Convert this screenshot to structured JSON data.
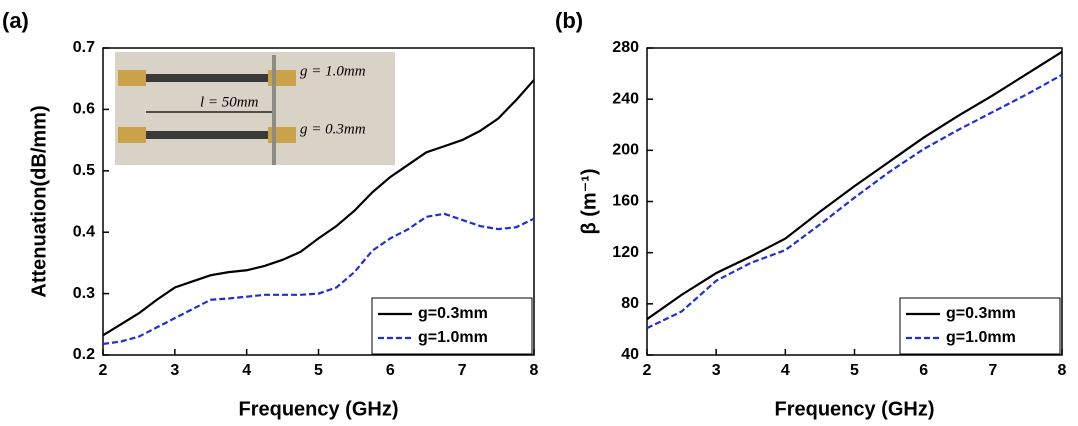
{
  "chart_data": [
    {
      "type": "line",
      "panel_label": "(a)",
      "xlabel": "Frequency (GHz)",
      "ylabel": "Attenuation(dB/mm)",
      "x": [
        2,
        2.25,
        2.5,
        2.75,
        3,
        3.25,
        3.5,
        3.75,
        4,
        4.25,
        4.5,
        4.75,
        5,
        5.25,
        5.5,
        5.75,
        6,
        6.25,
        6.5,
        6.75,
        7,
        7.25,
        7.5,
        7.75,
        8
      ],
      "series": [
        {
          "name": "g=0.3mm",
          "color": "#000000",
          "line_style": "solid",
          "values": [
            0.232,
            0.25,
            0.268,
            0.29,
            0.31,
            0.32,
            0.33,
            0.335,
            0.338,
            0.345,
            0.355,
            0.368,
            0.39,
            0.41,
            0.435,
            0.465,
            0.49,
            0.51,
            0.53,
            0.54,
            0.55,
            0.565,
            0.585,
            0.615,
            0.648
          ]
        },
        {
          "name": "g=1.0mm",
          "color": "#1f2fd6",
          "line_style": "dashed",
          "values": [
            0.218,
            0.222,
            0.23,
            0.245,
            0.26,
            0.275,
            0.29,
            0.292,
            0.295,
            0.298,
            0.298,
            0.298,
            0.3,
            0.31,
            0.335,
            0.37,
            0.39,
            0.405,
            0.425,
            0.43,
            0.42,
            0.41,
            0.405,
            0.408,
            0.422
          ]
        }
      ],
      "xlim": [
        2,
        8
      ],
      "ylim": [
        0.2,
        0.7
      ],
      "xticks": [
        2,
        3,
        4,
        5,
        6,
        7,
        8
      ],
      "yticks": [
        0.2,
        0.3,
        0.4,
        0.5,
        0.6,
        0.7
      ],
      "legend": "lower right",
      "annotations": [
        "g = 1.0mm",
        "l = 50mm",
        "g = 0.3mm"
      ]
    },
    {
      "type": "line",
      "panel_label": "(b)",
      "xlabel": "Frequency (GHz)",
      "ylabel": "β (m⁻¹)",
      "x": [
        2,
        2.5,
        3,
        3.5,
        4,
        4.5,
        5,
        5.5,
        6,
        6.5,
        7,
        7.5,
        8
      ],
      "series": [
        {
          "name": "g=0.3mm",
          "color": "#000000",
          "line_style": "solid",
          "values": [
            68,
            87,
            104,
            117,
            131,
            152,
            172,
            191,
            210,
            227,
            243,
            260,
            277
          ]
        },
        {
          "name": "g=1.0mm",
          "color": "#1f2fd6",
          "line_style": "dashed",
          "values": [
            61,
            74,
            98,
            112,
            122,
            142,
            163,
            183,
            201,
            216,
            230,
            244,
            259
          ]
        }
      ],
      "xlim": [
        2,
        8
      ],
      "ylim": [
        40,
        280
      ],
      "xticks": [
        2,
        3,
        4,
        5,
        6,
        7,
        8
      ],
      "yticks": [
        40,
        80,
        120,
        160,
        200,
        240,
        280
      ],
      "legend": "lower right"
    }
  ]
}
